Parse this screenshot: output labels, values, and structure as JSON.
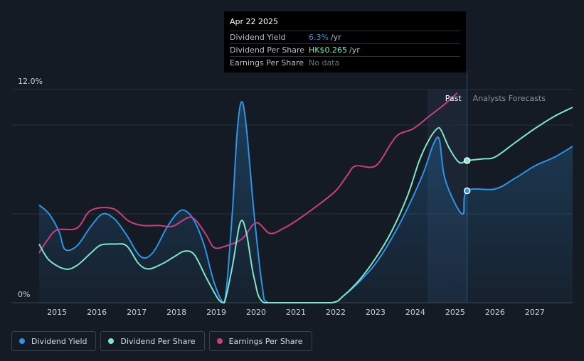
{
  "tooltip": {
    "date": "Apr 22 2025",
    "rows": [
      {
        "label": "Dividend Yield",
        "value": "6.3%",
        "unit": "/yr",
        "color": "#2e94e5"
      },
      {
        "label": "Dividend Per Share",
        "value": "HK$0.265",
        "unit": "/yr",
        "color": "#7fe6c8"
      },
      {
        "label": "Earnings Per Share",
        "value": "No data",
        "unit": "",
        "color": "#6b7280"
      }
    ]
  },
  "legend": [
    {
      "label": "Dividend Yield",
      "color": "#2e94e5"
    },
    {
      "label": "Dividend Per Share",
      "color": "#7fe6c8"
    },
    {
      "label": "Earnings Per Share",
      "color": "#c8407f"
    }
  ],
  "chart_data": {
    "type": "line",
    "y_ticks": [
      "12.0%",
      "0%"
    ],
    "ylim": [
      0,
      12
    ],
    "xlim": [
      2014.55,
      2027.95
    ],
    "x_ticks": [
      "2015",
      "2016",
      "2017",
      "2018",
      "2019",
      "2020",
      "2021",
      "2022",
      "2023",
      "2024",
      "2025",
      "2026",
      "2027"
    ],
    "past_label": "Past",
    "forecast_label": "Analysts Forecasts",
    "forecast_start": 2025.3,
    "highlight_start": 2024.3,
    "grid": true,
    "legend_position": "bottom-left",
    "series": [
      {
        "name": "Dividend Yield",
        "color": "#2e94e5",
        "fill": true,
        "values": [
          [
            2014.55,
            5.5
          ],
          [
            2014.8,
            5.0
          ],
          [
            2015.05,
            4.0
          ],
          [
            2015.2,
            3.0
          ],
          [
            2015.5,
            3.2
          ],
          [
            2015.85,
            4.3
          ],
          [
            2016.15,
            5.0
          ],
          [
            2016.45,
            4.7
          ],
          [
            2016.75,
            3.8
          ],
          [
            2017.1,
            2.6
          ],
          [
            2017.4,
            2.8
          ],
          [
            2017.75,
            4.2
          ],
          [
            2018.0,
            5.0
          ],
          [
            2018.2,
            5.2
          ],
          [
            2018.45,
            4.6
          ],
          [
            2018.7,
            3.2
          ],
          [
            2018.95,
            1.1
          ],
          [
            2019.2,
            0.0
          ],
          [
            2019.4,
            5.0
          ],
          [
            2019.52,
            9.5
          ],
          [
            2019.63,
            11.3
          ],
          [
            2019.75,
            10.0
          ],
          [
            2019.95,
            5.0
          ],
          [
            2020.15,
            1.0
          ],
          [
            2020.3,
            0.0
          ],
          [
            2021.0,
            0.0
          ],
          [
            2021.9,
            0.0
          ],
          [
            2022.2,
            0.4
          ],
          [
            2022.6,
            1.2
          ],
          [
            2023.0,
            2.2
          ],
          [
            2023.4,
            3.6
          ],
          [
            2023.8,
            5.3
          ],
          [
            2024.2,
            7.3
          ],
          [
            2024.45,
            8.9
          ],
          [
            2024.6,
            9.2
          ],
          [
            2024.72,
            7.2
          ],
          [
            2024.95,
            5.8
          ],
          [
            2025.2,
            5.0
          ],
          [
            2025.3,
            6.3
          ],
          [
            2026.0,
            6.4
          ],
          [
            2026.5,
            7.0
          ],
          [
            2027.0,
            7.7
          ],
          [
            2027.5,
            8.2
          ],
          [
            2027.95,
            8.8
          ]
        ]
      },
      {
        "name": "Dividend Per Share",
        "color": "#7fe6c8",
        "fill": false,
        "values": [
          [
            2014.55,
            3.3
          ],
          [
            2014.8,
            2.4
          ],
          [
            2015.2,
            1.9
          ],
          [
            2015.5,
            2.1
          ],
          [
            2015.85,
            2.8
          ],
          [
            2016.1,
            3.25
          ],
          [
            2016.45,
            3.3
          ],
          [
            2016.75,
            3.2
          ],
          [
            2017.05,
            2.2
          ],
          [
            2017.3,
            1.9
          ],
          [
            2017.65,
            2.2
          ],
          [
            2017.95,
            2.6
          ],
          [
            2018.2,
            2.9
          ],
          [
            2018.45,
            2.7
          ],
          [
            2018.75,
            1.4
          ],
          [
            2019.05,
            0.2
          ],
          [
            2019.2,
            0.0
          ],
          [
            2019.4,
            2.0
          ],
          [
            2019.6,
            4.5
          ],
          [
            2019.75,
            4.0
          ],
          [
            2019.95,
            1.4
          ],
          [
            2020.2,
            0.0
          ],
          [
            2021.0,
            0.0
          ],
          [
            2021.9,
            0.0
          ],
          [
            2022.2,
            0.4
          ],
          [
            2022.6,
            1.3
          ],
          [
            2023.0,
            2.5
          ],
          [
            2023.4,
            4.0
          ],
          [
            2023.8,
            6.0
          ],
          [
            2024.1,
            8.0
          ],
          [
            2024.35,
            9.2
          ],
          [
            2024.55,
            9.8
          ],
          [
            2024.65,
            9.7
          ],
          [
            2024.85,
            8.7
          ],
          [
            2025.1,
            7.9
          ],
          [
            2025.3,
            8.0
          ],
          [
            2025.7,
            8.1
          ],
          [
            2026.0,
            8.2
          ],
          [
            2026.5,
            9.0
          ],
          [
            2027.0,
            9.8
          ],
          [
            2027.5,
            10.5
          ],
          [
            2027.95,
            11.0
          ]
        ]
      },
      {
        "name": "Earnings Per Share",
        "color": "#c8407f",
        "fill": false,
        "values": [
          [
            2014.55,
            2.8
          ],
          [
            2014.75,
            3.5
          ],
          [
            2015.0,
            4.1
          ],
          [
            2015.5,
            4.2
          ],
          [
            2015.85,
            5.2
          ],
          [
            2016.4,
            5.3
          ],
          [
            2016.8,
            4.6
          ],
          [
            2017.15,
            4.35
          ],
          [
            2017.55,
            4.35
          ],
          [
            2017.9,
            4.3
          ],
          [
            2018.3,
            4.8
          ],
          [
            2018.5,
            4.6
          ],
          [
            2018.75,
            3.8
          ],
          [
            2018.95,
            3.1
          ],
          [
            2019.25,
            3.2
          ],
          [
            2019.65,
            3.6
          ],
          [
            2020.0,
            4.5
          ],
          [
            2020.35,
            3.9
          ],
          [
            2020.7,
            4.2
          ],
          [
            2021.0,
            4.6
          ],
          [
            2021.5,
            5.4
          ],
          [
            2022.0,
            6.3
          ],
          [
            2022.3,
            7.2
          ],
          [
            2022.5,
            7.7
          ],
          [
            2023.0,
            7.7
          ],
          [
            2023.4,
            9.0
          ],
          [
            2023.6,
            9.5
          ],
          [
            2023.95,
            9.8
          ],
          [
            2024.35,
            10.5
          ],
          [
            2024.75,
            11.2
          ],
          [
            2025.05,
            11.8
          ]
        ]
      }
    ]
  }
}
